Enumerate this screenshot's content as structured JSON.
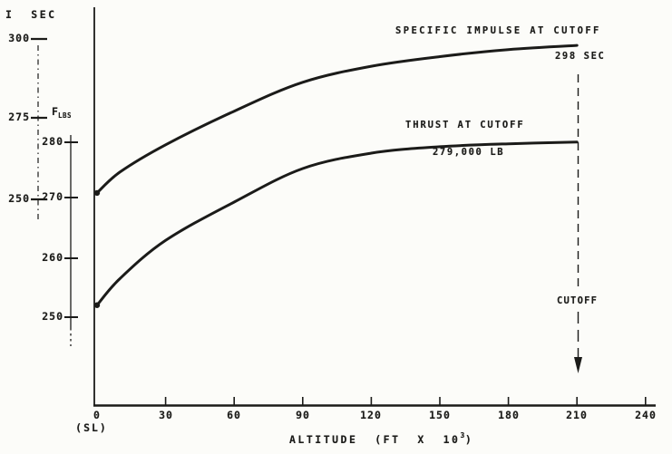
{
  "figure": {
    "background": "#fcfcf9",
    "ink": "#1b1b19"
  },
  "chart_data": {
    "type": "line",
    "title": "",
    "xlabel": "ALTITUDE (FT X 10^3)",
    "xlim": [
      0,
      240
    ],
    "x": [
      0,
      10,
      30,
      60,
      90,
      120,
      150,
      180,
      210
    ],
    "series": [
      {
        "name": "SPECIFIC IMPULSE AT CUTOFF",
        "axis": "isp",
        "unit": "SEC",
        "values": [
          252,
          258.5,
          267,
          277.5,
          286.5,
          291.5,
          294.5,
          296.7,
          298
        ],
        "end_label": "298 SEC"
      },
      {
        "name": "THRUST AT CUTOFF",
        "axis": "thrust",
        "unit": "LB",
        "values": [
          251.5,
          256,
          262.5,
          269,
          274.7,
          277.3,
          278.4,
          278.9,
          279.2
        ],
        "end_label": "279,000 LB"
      }
    ],
    "x_ticks": [
      "0",
      "30",
      "60",
      "90",
      "120",
      "150",
      "180",
      "210",
      "240"
    ],
    "x_tick_values": [
      0,
      30,
      60,
      90,
      120,
      150,
      180,
      210,
      240
    ],
    "isp_axis": {
      "label": "I  SEC",
      "ticks": [
        "300",
        "275",
        "250"
      ]
    },
    "thrust_axis": {
      "label": "F",
      "sub": "LBS",
      "ticks": [
        "280",
        "270",
        "260",
        "250"
      ]
    },
    "cutoff": {
      "label": "CUTOFF",
      "x": 210
    },
    "sea_level_label": "(SL)",
    "xlabel_display": {
      "prefix": "ALTITUDE  (FT  X  10",
      "sup": "3",
      "suffix": ")"
    }
  }
}
